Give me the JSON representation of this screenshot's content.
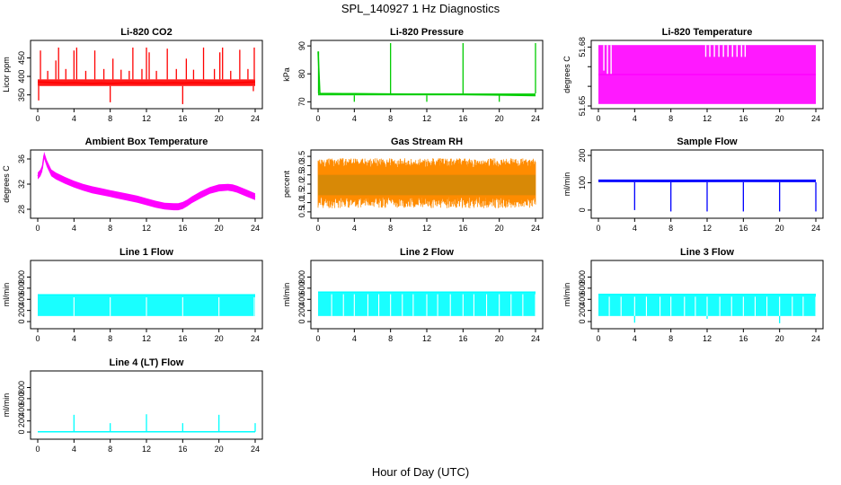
{
  "page": {
    "title": "SPL_140927  1 Hz Diagnostics",
    "xlabel": "Hour of Day (UTC)"
  },
  "chart_data": [
    {
      "type": "line",
      "title": "Li-820 CO2",
      "ylabel": "Licor ppm",
      "color": "#ff0000",
      "xlim": [
        0,
        24
      ],
      "xticks": [
        0,
        4,
        8,
        12,
        16,
        20,
        24
      ],
      "ylim": [
        320,
        490
      ],
      "yticks": [
        350,
        400,
        450
      ],
      "band": [
        374,
        392
      ],
      "x": [
        0,
        1,
        2,
        3,
        4,
        5,
        6,
        7,
        8,
        9,
        10,
        11,
        12,
        13,
        14,
        15,
        16,
        17,
        18,
        19,
        20,
        21,
        22,
        23,
        24
      ],
      "y": [
        385,
        384,
        383,
        382,
        383,
        382,
        381,
        382,
        381,
        382,
        383,
        382,
        382,
        383,
        382,
        383,
        382,
        383,
        383,
        382,
        382,
        382,
        383,
        384,
        385
      ],
      "spikes": [
        [
          0.1,
          335
        ],
        [
          0.3,
          470
        ],
        [
          1.1,
          415
        ],
        [
          2.0,
          443
        ],
        [
          2.3,
          478
        ],
        [
          3.1,
          420
        ],
        [
          4.0,
          470
        ],
        [
          4.3,
          478
        ],
        [
          5.3,
          415
        ],
        [
          6.3,
          470
        ],
        [
          7.3,
          420
        ],
        [
          8.0,
          330
        ],
        [
          8.3,
          448
        ],
        [
          9.2,
          418
        ],
        [
          10.1,
          415
        ],
        [
          10.5,
          478
        ],
        [
          11.5,
          420
        ],
        [
          12.0,
          478
        ],
        [
          12.3,
          465
        ],
        [
          13.1,
          415
        ],
        [
          14.3,
          475
        ],
        [
          15.3,
          420
        ],
        [
          16.0,
          325
        ],
        [
          16.4,
          448
        ],
        [
          17.2,
          418
        ],
        [
          18.3,
          478
        ],
        [
          19.5,
          420
        ],
        [
          20.1,
          465
        ],
        [
          20.4,
          478
        ],
        [
          21.3,
          415
        ],
        [
          22.3,
          472
        ],
        [
          23.2,
          420
        ],
        [
          23.8,
          360
        ],
        [
          23.9,
          478
        ]
      ]
    },
    {
      "type": "line",
      "title": "Li-820 Pressure",
      "ylabel": "kPa",
      "color": "#00cc00",
      "xlim": [
        0,
        24
      ],
      "xticks": [
        0,
        4,
        8,
        12,
        16,
        20,
        24
      ],
      "ylim": [
        68.5,
        91
      ],
      "yticks": [
        70,
        80,
        90
      ],
      "band": [
        72.3,
        73.0
      ],
      "x": [
        0,
        0.2,
        4,
        8,
        12,
        16,
        20,
        24
      ],
      "y": [
        88,
        73,
        72.9,
        72.8,
        72.7,
        72.6,
        72.4,
        72.2
      ],
      "spikes": [
        [
          0.05,
          88
        ],
        [
          4.0,
          70
        ],
        [
          8.0,
          91
        ],
        [
          12.0,
          70
        ],
        [
          16.0,
          91
        ],
        [
          20.0,
          70
        ],
        [
          24.0,
          91
        ]
      ]
    },
    {
      "type": "line",
      "title": "Li-820 Temperature",
      "ylabel": "degrees C",
      "color": "#ff00ff",
      "xlim": [
        0,
        24
      ],
      "xticks": [
        0,
        4,
        8,
        12,
        16,
        20,
        24
      ],
      "ylim": [
        51.65,
        51.682
      ],
      "yticks": [
        51.65,
        51.66,
        51.67,
        51.68
      ],
      "ytick_labels": [
        "51.65",
        "",
        "",
        "51.68"
      ],
      "band": [
        51.651,
        51.681
      ],
      "x": [
        0,
        24
      ],
      "y": [
        51.666,
        51.666
      ],
      "gaps": [
        [
          0.6,
          51.668,
          51.681
        ],
        [
          1.0,
          51.666,
          51.681
        ],
        [
          1.4,
          51.666,
          51.681
        ],
        [
          11.85,
          51.675,
          51.681
        ],
        [
          12.3,
          51.675,
          51.681
        ],
        [
          12.8,
          51.675,
          51.681
        ],
        [
          13.3,
          51.675,
          51.681
        ],
        [
          13.8,
          51.675,
          51.681
        ],
        [
          14.3,
          51.675,
          51.681
        ],
        [
          14.8,
          51.675,
          51.681
        ],
        [
          15.3,
          51.675,
          51.681
        ],
        [
          15.8,
          51.675,
          51.681
        ],
        [
          16.2,
          51.675,
          51.681
        ]
      ]
    },
    {
      "type": "line",
      "title": "Ambient Box Temperature",
      "ylabel": "degrees C",
      "color": "#ff00ff",
      "xlim": [
        0,
        24
      ],
      "xticks": [
        0,
        4,
        8,
        12,
        16,
        20,
        24
      ],
      "ylim": [
        27,
        37
      ],
      "yticks": [
        28,
        32,
        36
      ],
      "x": [
        0,
        0.3,
        0.5,
        0.7,
        1.0,
        1.5,
        2,
        3,
        4,
        5,
        6,
        7,
        8,
        9,
        10,
        11,
        12,
        13,
        14,
        15,
        15.5,
        16,
        16.5,
        17,
        18,
        19,
        20,
        21,
        21.5,
        22,
        23,
        24
      ],
      "y": [
        33.3,
        33.8,
        34.5,
        36.6,
        35.3,
        33.8,
        33.3,
        32.6,
        32.0,
        31.5,
        31.1,
        30.8,
        30.5,
        30.2,
        29.9,
        29.6,
        29.2,
        28.8,
        28.5,
        28.4,
        28.4,
        28.6,
        29.0,
        29.5,
        30.3,
        31.0,
        31.4,
        31.5,
        31.4,
        31.2,
        30.6,
        30.0
      ],
      "halfwidth": 0.55
    },
    {
      "type": "line",
      "title": "Gas Stream RH",
      "ylabel": "percent",
      "color": "#ff8c00",
      "xlim": [
        0,
        24
      ],
      "xticks": [
        0,
        4,
        8,
        12,
        16,
        20,
        24
      ],
      "ylim": [
        0.3,
        3.7
      ],
      "yticks": [
        0.5,
        1.0,
        1.5,
        2.0,
        2.5,
        3.0,
        3.5
      ],
      "ytick_labels": [
        "0.5",
        "1.0",
        "1.5",
        "2.0",
        "2.5",
        "3.0",
        "3.5"
      ],
      "x": [
        0,
        24
      ],
      "y": [
        2.0,
        2.0
      ],
      "range": [
        0.7,
        3.4
      ],
      "fill_color": "#b8860b"
    },
    {
      "type": "line",
      "title": "Sample Flow",
      "ylabel": "ml/min",
      "color": "#0000ff",
      "xlim": [
        0,
        24
      ],
      "xticks": [
        0,
        4,
        8,
        12,
        16,
        20,
        24
      ],
      "ylim": [
        -20,
        210
      ],
      "yticks": [
        0,
        100,
        200
      ],
      "band": [
        102,
        112
      ],
      "x": [
        0,
        4,
        8,
        12,
        16,
        20,
        24
      ],
      "y": [
        107,
        106,
        105,
        106,
        107,
        106,
        106
      ],
      "spikes": [
        [
          4.0,
          0
        ],
        [
          8.0,
          -5
        ],
        [
          12.0,
          -5
        ],
        [
          16.0,
          -5
        ],
        [
          20.0,
          -5
        ],
        [
          24.0,
          -5
        ]
      ]
    },
    {
      "type": "line",
      "title": "Line 1 Flow",
      "ylabel": "ml/min",
      "color": "#00ffff",
      "xlim": [
        0,
        24
      ],
      "xticks": [
        0,
        4,
        8,
        12,
        16,
        20,
        24
      ],
      "ylim": [
        -80,
        1050
      ],
      "yticks": [
        0,
        200,
        400,
        600,
        800
      ],
      "x": [
        0,
        24
      ],
      "y": [
        480,
        480
      ],
      "band": [
        100,
        485
      ],
      "ticks_lines": [
        4.0,
        8.0,
        12.0,
        16.0,
        20.0,
        23.9
      ]
    },
    {
      "type": "line",
      "title": "Line 2 Flow",
      "ylabel": "ml/min",
      "color": "#00ffff",
      "xlim": [
        0,
        24
      ],
      "xticks": [
        0,
        4,
        8,
        12,
        16,
        20,
        24
      ],
      "ylim": [
        -80,
        1050
      ],
      "yticks": [
        0,
        200,
        400,
        600,
        800
      ],
      "x": [
        0,
        24
      ],
      "y": [
        530,
        530
      ],
      "band": [
        100,
        540
      ],
      "ticks_lines": [
        1.5,
        2.8,
        4.0,
        5.5,
        6.7,
        8.0,
        9.3,
        10.5,
        12.0,
        13.2,
        14.6,
        16.0,
        17.2,
        18.6,
        20.0,
        21.3,
        22.6,
        24.0
      ]
    },
    {
      "type": "line",
      "title": "Line 3 Flow",
      "ylabel": "ml/min",
      "color": "#00ffff",
      "xlim": [
        0,
        24
      ],
      "xticks": [
        0,
        4,
        8,
        12,
        16,
        20,
        24
      ],
      "ylim": [
        -80,
        1050
      ],
      "yticks": [
        0,
        200,
        400,
        600,
        800
      ],
      "x": [
        0,
        24
      ],
      "y": [
        490,
        490
      ],
      "band": [
        100,
        495
      ],
      "ticks_lines": [
        1.2,
        2.5,
        4.0,
        5.3,
        6.8,
        8.0,
        9.5,
        10.7,
        12.0,
        13.4,
        14.7,
        16.0,
        17.3,
        18.6,
        20.0,
        21.4,
        22.6,
        24.0
      ],
      "spikes": [
        [
          4.0,
          -20
        ],
        [
          12.0,
          50
        ],
        [
          20.0,
          -30
        ]
      ]
    },
    {
      "type": "line",
      "title": "Line 4 (LT) Flow",
      "ylabel": "ml/min",
      "color": "#00ffff",
      "xlim": [
        0,
        24
      ],
      "xticks": [
        0,
        4,
        8,
        12,
        16,
        20,
        24
      ],
      "ylim": [
        -80,
        1050
      ],
      "yticks": [
        0,
        200,
        400,
        600,
        800
      ],
      "x": [
        0,
        24
      ],
      "y": [
        5,
        5
      ],
      "spikes": [
        [
          4.0,
          310
        ],
        [
          8.0,
          160
        ],
        [
          12.0,
          320
        ],
        [
          16.0,
          160
        ],
        [
          20.0,
          310
        ],
        [
          24.0,
          160
        ]
      ]
    }
  ]
}
